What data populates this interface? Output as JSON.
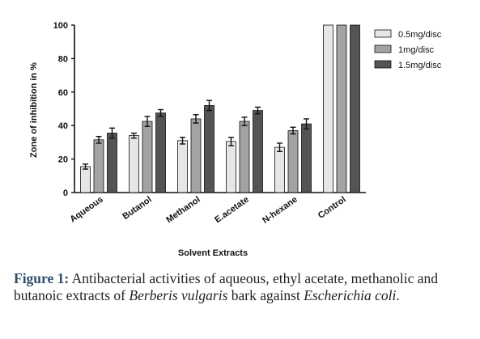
{
  "chart_data": {
    "type": "bar",
    "xlabel": "Solvent Extracts",
    "ylabel": "Zone of inhibition in %",
    "ylim": [
      0,
      100
    ],
    "yticks": [
      "0",
      "20",
      "40",
      "60",
      "80",
      "100"
    ],
    "categories": [
      "Aqueous",
      "Butanol",
      "Methanol",
      "E.acetate",
      "N-hexane",
      "Control"
    ],
    "series": [
      {
        "name": "0.5mg/disc",
        "values": [
          15.5,
          34,
          31,
          30.5,
          27,
          100
        ],
        "errors": [
          1.5,
          1.5,
          2,
          2.5,
          2.5,
          0
        ],
        "color": "#e6e6e6"
      },
      {
        "name": "1mg/disc",
        "values": [
          31.5,
          42.5,
          44,
          42.5,
          37,
          100
        ],
        "errors": [
          2,
          3,
          2.5,
          2.5,
          2,
          0
        ],
        "color": "#a3a3a3"
      },
      {
        "name": "1.5mg/disc",
        "values": [
          35.5,
          47.5,
          52,
          49,
          41,
          100
        ],
        "errors": [
          3,
          2,
          3,
          2,
          3,
          0
        ],
        "color": "#545454"
      }
    ],
    "legend_position": "top-right",
    "grid": false
  },
  "caption": {
    "label": "Figure 1:",
    "text_before": " Antibacterial activities of aqueous, ethyl acetate, methanolic and butanoic extracts of ",
    "species": "Berberis vulgaris",
    "text_middle": " bark against ",
    "organism": "Escherichia coli",
    "text_end": "."
  }
}
